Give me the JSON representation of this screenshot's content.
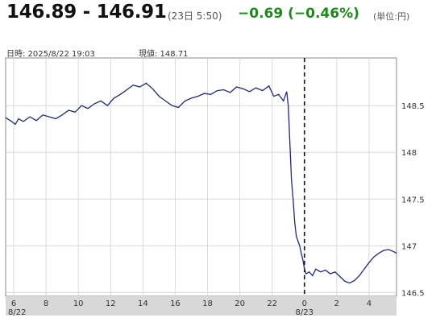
{
  "header": {
    "bid_ask": "146.89 - 146.91",
    "timestamp": "(23日 5:50)",
    "change": "−0.69 (−0.46%)",
    "unit": "(単位:円)",
    "datetime_label": "日時: 2025/8/22 19:03",
    "current_label": "現値: 148.71"
  },
  "colors": {
    "line": "#1f2a7a",
    "change": "#1a8a1a",
    "grid": "#d9d9d9",
    "axis_band": "#d8d8d8"
  },
  "chart_data": {
    "type": "line",
    "title": "",
    "xlabel": "",
    "ylabel": "",
    "x_ticks": [
      "6",
      "8",
      "10",
      "12",
      "14",
      "16",
      "18",
      "20",
      "22",
      "0",
      "2",
      "4"
    ],
    "x_date_labels": [
      "8/22",
      "8/23"
    ],
    "y_ticks": [
      "146.5",
      "147",
      "147.5",
      "148",
      "148.5"
    ],
    "ylim": [
      146.46,
      149.01
    ],
    "x_hours": [
      5.5,
      29.7
    ],
    "day_boundary_hour": 24,
    "grid": true,
    "series": [
      {
        "x": [
          5.5,
          5.8,
          6.1,
          6.3,
          6.6,
          7.0,
          7.4,
          7.8,
          8.2,
          8.6,
          9.0,
          9.4,
          9.8,
          10.2,
          10.6,
          11.0,
          11.4,
          11.8,
          12.2,
          12.6,
          13.0,
          13.4,
          13.8,
          14.2,
          14.6,
          15.0,
          15.4,
          15.8,
          16.2,
          16.6,
          17.0,
          17.4,
          17.8,
          18.2,
          18.6,
          19.0,
          19.4,
          19.8,
          20.2,
          20.6,
          21.0,
          21.4,
          21.8,
          22.1,
          22.4,
          22.7,
          22.9,
          23.0,
          23.1,
          23.2,
          23.3,
          23.4,
          23.5,
          23.6,
          23.7,
          23.8,
          23.9,
          24.0,
          24.1,
          24.3,
          24.5,
          24.7,
          25.0,
          25.3,
          25.6,
          25.9,
          26.2,
          26.5,
          26.8,
          27.1,
          27.4,
          27.7,
          28.0,
          28.3,
          28.6,
          28.9,
          29.2,
          29.5,
          29.7
        ],
        "y": [
          148.37,
          148.34,
          148.3,
          148.36,
          148.33,
          148.38,
          148.34,
          148.4,
          148.38,
          148.36,
          148.4,
          148.45,
          148.43,
          148.5,
          148.47,
          148.52,
          148.55,
          148.5,
          148.58,
          148.62,
          148.67,
          148.72,
          148.7,
          148.74,
          148.68,
          148.6,
          148.55,
          148.5,
          148.48,
          148.55,
          148.58,
          148.6,
          148.63,
          148.62,
          148.66,
          148.67,
          148.64,
          148.7,
          148.68,
          148.65,
          148.69,
          148.66,
          148.71,
          148.6,
          148.62,
          148.55,
          148.65,
          148.5,
          148.1,
          147.7,
          147.5,
          147.25,
          147.1,
          147.05,
          147.0,
          146.92,
          146.85,
          146.75,
          146.7,
          146.72,
          146.68,
          146.75,
          146.72,
          146.74,
          146.7,
          146.72,
          146.67,
          146.62,
          146.6,
          146.63,
          146.68,
          146.75,
          146.82,
          146.88,
          146.92,
          146.95,
          146.96,
          146.94,
          146.92
        ]
      }
    ]
  }
}
